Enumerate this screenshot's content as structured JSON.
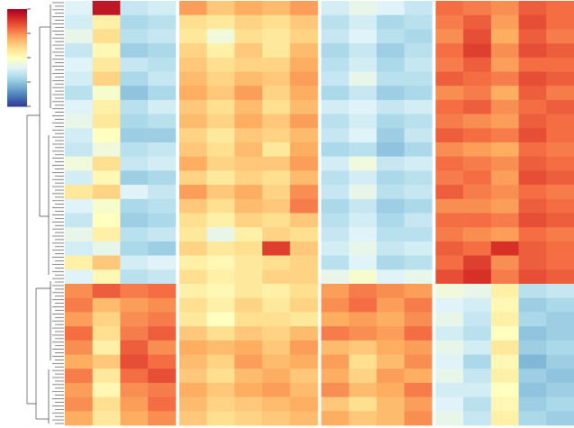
{
  "chart_data": {
    "type": "heatmap",
    "zlim": [
      -2,
      2
    ],
    "zticks": [
      -2,
      -1,
      0,
      1,
      2
    ],
    "colors": [
      "#313695",
      "#4575b4",
      "#74add1",
      "#abd9e9",
      "#e0f3f8",
      "#ffffbf",
      "#fee090",
      "#fdae61",
      "#f46d43",
      "#d73027",
      "#a50026"
    ],
    "groups": [
      {
        "values": [
          [
            -0.4,
            1.8,
            -0.6,
            -0.5
          ],
          [
            -0.5,
            0.2,
            -0.8,
            -0.7
          ],
          [
            -0.3,
            0.4,
            -0.7,
            -0.6
          ],
          [
            -0.6,
            0.1,
            -0.9,
            -0.8
          ],
          [
            -0.4,
            0.3,
            -0.6,
            -0.7
          ],
          [
            -0.5,
            0.5,
            -0.8,
            -0.6
          ],
          [
            -0.7,
            -0.1,
            -1.0,
            -0.8
          ],
          [
            -0.4,
            0.2,
            -0.7,
            -0.5
          ],
          [
            -0.3,
            0.3,
            -0.8,
            -0.7
          ],
          [
            -0.5,
            0.0,
            -0.9,
            -0.9
          ],
          [
            -0.6,
            -0.2,
            -0.7,
            -0.6
          ],
          [
            -0.2,
            0.4,
            -0.6,
            -0.5
          ],
          [
            -0.5,
            0.1,
            -0.9,
            -0.8
          ],
          [
            0.3,
            0.5,
            -0.4,
            -0.6
          ],
          [
            -0.4,
            -0.1,
            -0.8,
            -0.7
          ],
          [
            -0.6,
            0.0,
            -0.9,
            -0.8
          ],
          [
            -0.3,
            0.2,
            -0.7,
            -0.6
          ],
          [
            -0.5,
            -0.3,
            -0.8,
            -0.9
          ],
          [
            0.2,
            0.6,
            -0.5,
            -0.4
          ],
          [
            -0.4,
            0.1,
            -0.7,
            -0.6
          ],
          [
            1.0,
            1.3,
            1.1,
            1.2
          ],
          [
            1.1,
            0.7,
            0.9,
            1.0
          ],
          [
            0.9,
            0.5,
            1.0,
            1.1
          ],
          [
            1.2,
            0.4,
            1.1,
            1.3
          ],
          [
            1.0,
            0.2,
            1.3,
            1.0
          ],
          [
            0.8,
            0.6,
            1.4,
            1.2
          ],
          [
            1.1,
            0.3,
            1.2,
            1.4
          ],
          [
            0.9,
            0.1,
            1.0,
            1.1
          ],
          [
            1.0,
            0.4,
            0.9,
            1.2
          ],
          [
            0.8,
            0.3,
            0.8,
            1.0
          ]
        ]
      },
      {
        "values": [
          [
            0.9,
            0.6,
            0.8,
            0.7,
            0.9
          ],
          [
            0.4,
            0.3,
            0.5,
            0.4,
            0.6
          ],
          [
            0.3,
            -0.2,
            0.4,
            0.3,
            0.5
          ],
          [
            0.5,
            0.2,
            0.6,
            0.3,
            0.7
          ],
          [
            0.6,
            0.4,
            0.5,
            0.5,
            0.8
          ],
          [
            0.7,
            0.5,
            0.7,
            0.6,
            0.9
          ],
          [
            0.8,
            0.6,
            0.9,
            0.5,
            0.8
          ],
          [
            0.6,
            0.4,
            0.7,
            0.4,
            0.7
          ],
          [
            0.7,
            0.5,
            0.8,
            0.6,
            0.9
          ],
          [
            0.5,
            0.3,
            0.6,
            0.5,
            0.7
          ],
          [
            0.6,
            0.4,
            0.7,
            0.3,
            0.8
          ],
          [
            0.8,
            0.5,
            0.6,
            0.6,
            0.9
          ],
          [
            0.5,
            0.3,
            0.5,
            0.4,
            0.7
          ],
          [
            0.9,
            0.6,
            0.8,
            0.5,
            1.0
          ],
          [
            0.6,
            0.4,
            0.7,
            0.6,
            1.1
          ],
          [
            0.4,
            0.2,
            0.5,
            0.4,
            0.6
          ],
          [
            0.3,
            -0.3,
            0.2,
            0.5,
            0.4
          ],
          [
            0.5,
            0.3,
            0.4,
            1.5,
            0.6
          ],
          [
            0.2,
            0.1,
            0.3,
            0.4,
            0.5
          ],
          [
            0.4,
            0.2,
            0.3,
            0.5,
            0.5
          ],
          [
            0.2,
            0.1,
            0.3,
            0.2,
            0.4
          ],
          [
            0.4,
            0.2,
            0.5,
            0.3,
            0.5
          ],
          [
            0.3,
            0.0,
            0.4,
            0.4,
            0.3
          ],
          [
            0.6,
            0.4,
            0.6,
            0.5,
            0.7
          ],
          [
            0.8,
            0.7,
            0.8,
            0.6,
            0.9
          ],
          [
            0.7,
            0.5,
            0.9,
            0.7,
            0.8
          ],
          [
            0.6,
            0.4,
            0.7,
            0.8,
            0.6
          ],
          [
            0.8,
            0.6,
            0.8,
            0.9,
            0.7
          ],
          [
            0.7,
            0.5,
            0.6,
            0.7,
            0.8
          ],
          [
            0.6,
            0.4,
            0.5,
            0.6,
            0.7
          ]
        ]
      },
      {
        "values": [
          [
            -0.5,
            -0.3,
            -0.4,
            -0.6
          ],
          [
            -0.7,
            -0.5,
            -0.8,
            -0.7
          ],
          [
            -0.6,
            -0.4,
            -0.7,
            -0.8
          ],
          [
            -0.8,
            -0.6,
            -0.9,
            -0.7
          ],
          [
            -0.7,
            -0.5,
            -0.8,
            -0.6
          ],
          [
            -0.6,
            -0.3,
            -0.7,
            -0.7
          ],
          [
            -0.8,
            -0.6,
            -0.9,
            -0.8
          ],
          [
            -0.5,
            -0.4,
            -0.6,
            -0.5
          ],
          [
            -0.7,
            -0.5,
            -0.8,
            -0.7
          ],
          [
            -0.6,
            -0.4,
            -0.9,
            -0.6
          ],
          [
            -0.8,
            -0.7,
            -1.0,
            -0.8
          ],
          [
            -0.5,
            -0.2,
            -0.6,
            -0.5
          ],
          [
            -0.7,
            -0.5,
            -0.8,
            -0.7
          ],
          [
            -0.6,
            -0.3,
            -0.7,
            -0.6
          ],
          [
            -0.8,
            -0.6,
            -0.9,
            -0.8
          ],
          [
            -0.7,
            -0.5,
            -0.8,
            -0.6
          ],
          [
            -0.6,
            -0.4,
            -0.7,
            -0.7
          ],
          [
            -0.5,
            -0.3,
            -0.6,
            -0.5
          ],
          [
            -0.7,
            -0.4,
            -0.8,
            -0.7
          ],
          [
            -0.3,
            -0.1,
            -0.4,
            -0.3
          ],
          [
            0.9,
            1.1,
            1.0,
            0.9
          ],
          [
            1.0,
            1.2,
            0.9,
            1.1
          ],
          [
            0.8,
            0.9,
            0.8,
            1.0
          ],
          [
            1.1,
            1.0,
            0.9,
            1.2
          ],
          [
            0.7,
            0.6,
            0.8,
            0.9
          ],
          [
            0.9,
            0.4,
            0.7,
            1.0
          ],
          [
            0.8,
            0.5,
            0.9,
            0.8
          ],
          [
            1.0,
            0.7,
            0.8,
            1.1
          ],
          [
            0.6,
            0.4,
            0.7,
            0.9
          ],
          [
            0.8,
            0.6,
            0.7,
            1.0
          ]
        ]
      },
      {
        "values": [
          [
            1.2,
            1.1,
            1.0,
            1.3,
            1.2
          ],
          [
            1.1,
            1.3,
            0.9,
            1.4,
            1.2
          ],
          [
            1.0,
            1.4,
            0.8,
            1.3,
            1.1
          ],
          [
            1.2,
            1.5,
            1.0,
            1.4,
            1.3
          ],
          [
            1.1,
            1.3,
            0.9,
            1.2,
            1.2
          ],
          [
            1.3,
            1.2,
            1.1,
            1.4,
            1.3
          ],
          [
            1.0,
            1.1,
            0.8,
            1.3,
            1.1
          ],
          [
            1.2,
            1.3,
            1.0,
            1.2,
            1.3
          ],
          [
            1.1,
            1.0,
            0.9,
            1.3,
            1.2
          ],
          [
            1.3,
            1.2,
            1.1,
            1.4,
            1.2
          ],
          [
            1.0,
            0.9,
            0.8,
            1.2,
            1.1
          ],
          [
            1.2,
            1.1,
            1.0,
            1.3,
            1.2
          ],
          [
            1.1,
            1.2,
            0.9,
            1.4,
            1.3
          ],
          [
            1.3,
            1.1,
            1.0,
            1.2,
            1.1
          ],
          [
            1.0,
            1.0,
            0.9,
            1.3,
            1.2
          ],
          [
            1.2,
            1.2,
            1.1,
            1.4,
            1.3
          ],
          [
            1.1,
            1.0,
            0.9,
            1.2,
            1.1
          ],
          [
            1.3,
            1.2,
            1.6,
            1.3,
            1.2
          ],
          [
            1.2,
            1.5,
            1.0,
            1.3,
            1.2
          ],
          [
            1.4,
            1.6,
            1.1,
            1.4,
            1.3
          ],
          [
            -0.2,
            -0.3,
            0.2,
            -0.7,
            -0.6
          ],
          [
            -0.4,
            -0.5,
            0.1,
            -0.9,
            -0.8
          ],
          [
            -0.3,
            -0.6,
            0.2,
            -0.8,
            -0.9
          ],
          [
            -0.5,
            -0.7,
            0.0,
            -1.0,
            -0.9
          ],
          [
            -0.3,
            -0.5,
            0.3,
            -0.9,
            -0.8
          ],
          [
            -0.4,
            -0.8,
            0.1,
            -1.1,
            -0.9
          ],
          [
            -0.3,
            -0.6,
            0.2,
            -0.9,
            -1.0
          ],
          [
            -0.5,
            -0.5,
            0.0,
            -1.0,
            -0.9
          ],
          [
            -0.4,
            -0.7,
            0.1,
            -0.9,
            -0.8
          ],
          [
            -0.3,
            -0.6,
            0.2,
            -0.8,
            -0.9
          ]
        ]
      }
    ]
  }
}
